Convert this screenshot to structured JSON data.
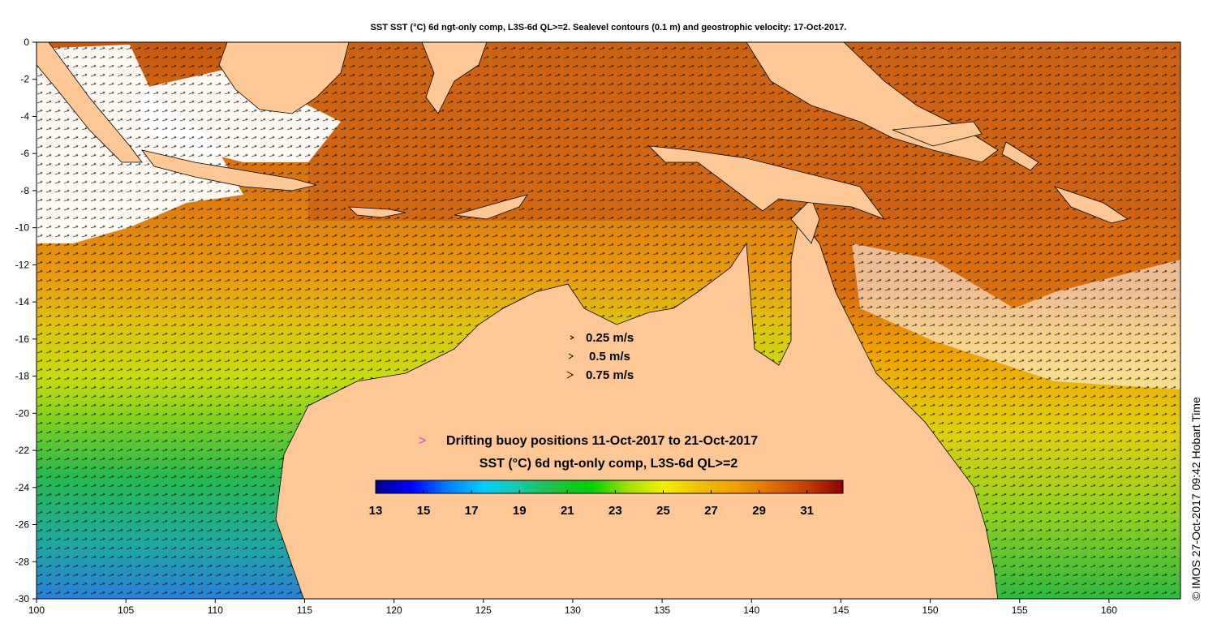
{
  "title": "SST SST (°C) 6d ngt-only comp, L3S-6d QL>=2. Sealevel contours (0.1 m) and geostrophic velocity: 17-Oct-2017.",
  "map": {
    "lon_range": [
      100,
      164
    ],
    "lat_range": [
      -30,
      0
    ],
    "x_ticks": [
      "100",
      "105",
      "110",
      "115",
      "120",
      "125",
      "130",
      "135",
      "140",
      "145",
      "150",
      "155",
      "160"
    ],
    "y_ticks": [
      "0",
      "-2",
      "-4",
      "-6",
      "-8",
      "-10",
      "-12",
      "-14",
      "-16",
      "-18",
      "-20",
      "-22",
      "-24",
      "-26",
      "-28",
      "-30"
    ],
    "land_color": "#fdc896"
  },
  "velocity_legend": {
    "items": [
      "0.25 m/s",
      "0.5 m/s",
      "0.75 m/s"
    ]
  },
  "buoy_legend": {
    "marker": ">",
    "marker_color": "#d43bd4",
    "label": "Drifting buoy positions 11-Oct-2017 to 21-Oct-2017"
  },
  "colorbar": {
    "title": "SST (°C) 6d ngt-only comp, L3S-6d QL>=2",
    "ticks": [
      "13",
      "15",
      "17",
      "19",
      "21",
      "23",
      "25",
      "27",
      "29",
      "31"
    ],
    "min": 13,
    "max": 32.5,
    "colors": [
      "#00008f",
      "#0000ff",
      "#007fff",
      "#00cfff",
      "#19c8a0",
      "#20c040",
      "#00d000",
      "#a0e000",
      "#f0f000",
      "#f0c000",
      "#f0a000",
      "#e07000",
      "#c04000",
      "#900000"
    ]
  },
  "stamp": "© IMOS 27-Oct-2017 09:42 Hobart Time"
}
